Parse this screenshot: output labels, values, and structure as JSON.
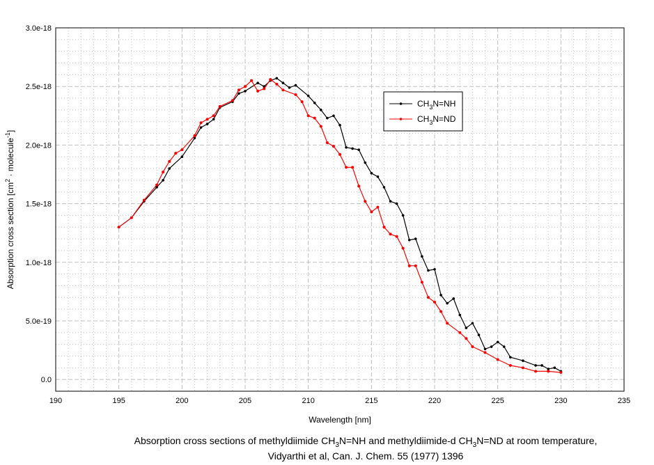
{
  "chart_data": {
    "type": "line",
    "title": "",
    "xlabel": "Wavelength [nm]",
    "ylabel_parts": [
      "Absorption cross section [cm",
      "2",
      " · molecule",
      "-1",
      "]"
    ],
    "xlim": [
      190,
      235
    ],
    "ylim": [
      -1e-19,
      3e-18
    ],
    "x_ticks": [
      190,
      195,
      200,
      205,
      210,
      215,
      220,
      225,
      230,
      235
    ],
    "x_tick_labels": [
      "190",
      "195",
      "200",
      "205",
      "210",
      "215",
      "220",
      "225",
      "230",
      "235"
    ],
    "y_ticks": [
      0,
      5e-19,
      1e-18,
      1.5e-18,
      2e-18,
      2.5e-18,
      3e-18
    ],
    "y_tick_labels": [
      "0.0",
      "5.0e-19",
      "1.0e-18",
      "1.5e-18",
      "2.0e-18",
      "2.5e-18",
      "3.0e-18"
    ],
    "grid": true,
    "legend_position": "top-right",
    "series": [
      {
        "name": "CH3N=NH",
        "legend_parts": [
          "CH",
          "3",
          "N=NH"
        ],
        "color": "#000000",
        "x": [
          195,
          196,
          197,
          198,
          198.5,
          199,
          200,
          201,
          201.5,
          202,
          202.5,
          203,
          204,
          204.5,
          205,
          206,
          206.5,
          207,
          207.5,
          208,
          208.5,
          209,
          210,
          210.5,
          211,
          211.5,
          212,
          212.5,
          213,
          213.5,
          214,
          214.5,
          215,
          215.5,
          216,
          216.5,
          217,
          217.5,
          218,
          218.5,
          219,
          219.5,
          220,
          220.5,
          221,
          221.5,
          222,
          222.5,
          223,
          223.5,
          224,
          224.5,
          225,
          225.5,
          226,
          227,
          228,
          228.5,
          229,
          229.5,
          230
        ],
        "y": [
          1.3e-18,
          1.38e-18,
          1.52e-18,
          1.64e-18,
          1.7e-18,
          1.8e-18,
          1.9e-18,
          2.06e-18,
          2.15e-18,
          2.18e-18,
          2.22e-18,
          2.32e-18,
          2.37e-18,
          2.44e-18,
          2.46e-18,
          2.53e-18,
          2.5e-18,
          2.55e-18,
          2.57e-18,
          2.53e-18,
          2.49e-18,
          2.51e-18,
          2.42e-18,
          2.36e-18,
          2.3e-18,
          2.23e-18,
          2.25e-18,
          2.17e-18,
          1.98e-18,
          1.97e-18,
          1.96e-18,
          1.85e-18,
          1.76e-18,
          1.73e-18,
          1.64e-18,
          1.52e-18,
          1.5e-18,
          1.4e-18,
          1.19e-18,
          1.2e-18,
          1.05e-18,
          9.3e-19,
          9.4e-19,
          7.2e-19,
          6.5e-19,
          6.9e-19,
          5.5e-19,
          4.4e-19,
          4.8e-19,
          3.8e-19,
          2.6e-19,
          2.8e-19,
          3.2e-19,
          2.8e-19,
          1.9e-19,
          1.6e-19,
          1.2e-19,
          1.2e-19,
          9e-20,
          1e-19,
          7e-20
        ]
      },
      {
        "name": "CH3N=ND",
        "legend_parts": [
          "CH",
          "3",
          "N=ND"
        ],
        "color": "#ff0000",
        "x": [
          195,
          196,
          197,
          198,
          198.5,
          199,
          199.5,
          200,
          201,
          201.5,
          202,
          202.5,
          203,
          204,
          204.5,
          205,
          205.5,
          206,
          206.5,
          207,
          207.5,
          208,
          209,
          209.5,
          210,
          210.5,
          211,
          211.5,
          212,
          212.5,
          213,
          213.5,
          214,
          214.5,
          215,
          215.5,
          216,
          216.5,
          217,
          217.5,
          218,
          218.5,
          219,
          219.5,
          220,
          220.5,
          221,
          222,
          222.5,
          223,
          224,
          225,
          226,
          227,
          228,
          229,
          230
        ],
        "y": [
          1.3e-18,
          1.38e-18,
          1.53e-18,
          1.66e-18,
          1.77e-18,
          1.86e-18,
          1.93e-18,
          1.96e-18,
          2.08e-18,
          2.19e-18,
          2.22e-18,
          2.25e-18,
          2.33e-18,
          2.38e-18,
          2.47e-18,
          2.5e-18,
          2.55e-18,
          2.46e-18,
          2.48e-18,
          2.56e-18,
          2.52e-18,
          2.47e-18,
          2.43e-18,
          2.37e-18,
          2.25e-18,
          2.23e-18,
          2.16e-18,
          2.02e-18,
          1.99e-18,
          1.92e-18,
          1.81e-18,
          1.81e-18,
          1.65e-18,
          1.52e-18,
          1.43e-18,
          1.47e-18,
          1.3e-18,
          1.24e-18,
          1.22e-18,
          1.12e-18,
          9.7e-19,
          9.7e-19,
          8.3e-19,
          7e-19,
          6.6e-19,
          5.8e-19,
          4.8e-19,
          4e-19,
          3.5e-19,
          2.8e-19,
          2.3e-19,
          1.7e-19,
          1.2e-19,
          1e-19,
          7e-20,
          7e-20,
          6e-20
        ]
      }
    ]
  },
  "caption": {
    "line1_parts": [
      "Absorption cross sections of  methyldiimide CH",
      "3",
      "N=NH and  methyldiimide-d CH",
      "3",
      "N=ND at room temperature,"
    ],
    "line2": "Vidyarthi et al, Can. J. Chem. 55 (1977) 1396"
  }
}
